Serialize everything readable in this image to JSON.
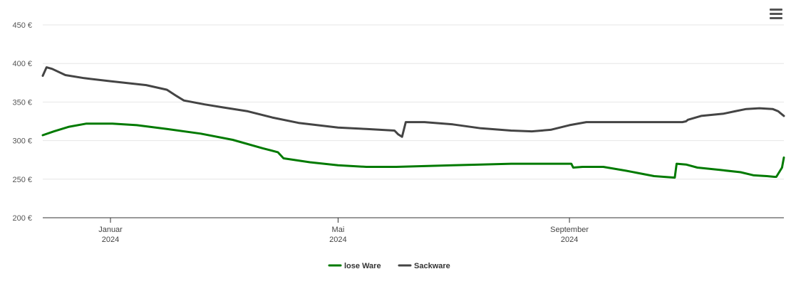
{
  "menu": {
    "icon": "hamburger-menu-icon"
  },
  "chart_data": {
    "type": "line",
    "title": "",
    "xlabel": "",
    "ylabel": "",
    "ylim": [
      200,
      450
    ],
    "xlim": [
      "2023-11-26",
      "2024-12-24"
    ],
    "grid": true,
    "legend_position": "bottom-center",
    "y_ticks": [
      {
        "value": 200,
        "label": "200 €"
      },
      {
        "value": 250,
        "label": "250 €"
      },
      {
        "value": 300,
        "label": "300 €"
      },
      {
        "value": 350,
        "label": "350 €"
      },
      {
        "value": 400,
        "label": "400 €"
      },
      {
        "value": 450,
        "label": "450 €"
      }
    ],
    "x_ticks": [
      {
        "date": "2024-01-01",
        "month": "Januar",
        "year": "2024"
      },
      {
        "date": "2024-05-01",
        "month": "Mai",
        "year": "2024"
      },
      {
        "date": "2024-09-01",
        "month": "September",
        "year": "2024"
      }
    ],
    "series": [
      {
        "name": "lose Ware",
        "color": "#007a00",
        "points": [
          [
            "2023-11-26",
            307
          ],
          [
            "2023-12-02",
            312
          ],
          [
            "2023-12-10",
            318
          ],
          [
            "2023-12-19",
            322
          ],
          [
            "2024-01-02",
            322
          ],
          [
            "2024-01-15",
            320
          ],
          [
            "2024-01-31",
            315
          ],
          [
            "2024-02-18",
            309
          ],
          [
            "2024-03-06",
            301
          ],
          [
            "2024-03-22",
            290
          ],
          [
            "2024-03-30",
            285
          ],
          [
            "2024-04-02",
            277
          ],
          [
            "2024-04-16",
            272
          ],
          [
            "2024-05-01",
            268
          ],
          [
            "2024-05-16",
            266
          ],
          [
            "2024-06-01",
            266
          ],
          [
            "2024-06-16",
            267
          ],
          [
            "2024-07-01",
            268
          ],
          [
            "2024-07-16",
            269
          ],
          [
            "2024-08-01",
            270
          ],
          [
            "2024-08-12",
            270
          ],
          [
            "2024-09-02",
            270
          ],
          [
            "2024-09-03",
            265
          ],
          [
            "2024-09-08",
            266
          ],
          [
            "2024-09-19",
            266
          ],
          [
            "2024-10-01",
            261
          ],
          [
            "2024-10-16",
            254
          ],
          [
            "2024-10-27",
            252
          ],
          [
            "2024-10-28",
            270
          ],
          [
            "2024-11-02",
            269
          ],
          [
            "2024-11-08",
            265
          ],
          [
            "2024-11-20",
            262
          ],
          [
            "2024-12-01",
            259
          ],
          [
            "2024-12-08",
            255
          ],
          [
            "2024-12-15",
            254
          ],
          [
            "2024-12-19",
            253
          ],
          [
            "2024-12-20",
            253
          ],
          [
            "2024-12-23",
            265
          ],
          [
            "2024-12-24",
            278
          ]
        ]
      },
      {
        "name": "Sackware",
        "color": "#444444",
        "points": [
          [
            "2023-11-26",
            384
          ],
          [
            "2023-11-28",
            395
          ],
          [
            "2023-12-01",
            393
          ],
          [
            "2023-12-08",
            385
          ],
          [
            "2023-12-18",
            381
          ],
          [
            "2024-01-01",
            377
          ],
          [
            "2024-01-20",
            372
          ],
          [
            "2024-01-31",
            366
          ],
          [
            "2024-02-05",
            358
          ],
          [
            "2024-02-09",
            352
          ],
          [
            "2024-02-20",
            347
          ],
          [
            "2024-03-01",
            343
          ],
          [
            "2024-03-14",
            338
          ],
          [
            "2024-03-27",
            330
          ],
          [
            "2024-04-10",
            323
          ],
          [
            "2024-05-01",
            317
          ],
          [
            "2024-05-16",
            315
          ],
          [
            "2024-05-31",
            313
          ],
          [
            "2024-06-02",
            308
          ],
          [
            "2024-06-04",
            305
          ],
          [
            "2024-06-06",
            324
          ],
          [
            "2024-06-16",
            324
          ],
          [
            "2024-07-01",
            321
          ],
          [
            "2024-07-16",
            316
          ],
          [
            "2024-08-01",
            313
          ],
          [
            "2024-08-12",
            312
          ],
          [
            "2024-08-22",
            314
          ],
          [
            "2024-09-01",
            320
          ],
          [
            "2024-09-10",
            324
          ],
          [
            "2024-10-01",
            324
          ],
          [
            "2024-10-16",
            324
          ],
          [
            "2024-10-31",
            324
          ],
          [
            "2024-11-02",
            325
          ],
          [
            "2024-11-03",
            327
          ],
          [
            "2024-11-10",
            332
          ],
          [
            "2024-11-22",
            335
          ],
          [
            "2024-11-28",
            338
          ],
          [
            "2024-12-04",
            341
          ],
          [
            "2024-12-11",
            342
          ],
          [
            "2024-12-18",
            341
          ],
          [
            "2024-12-21",
            338
          ],
          [
            "2024-12-22",
            336
          ],
          [
            "2024-12-24",
            332
          ]
        ]
      }
    ]
  }
}
